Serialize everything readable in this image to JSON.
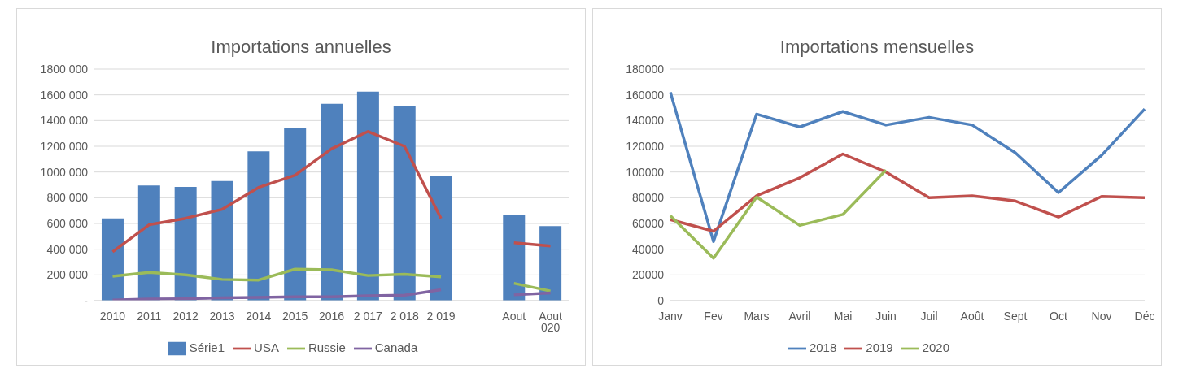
{
  "chart_data": [
    {
      "type": "bar",
      "title": "Importations annuelles",
      "categories": [
        "2010",
        "2011",
        "2012",
        "2013",
        "2014",
        "2015",
        "2016",
        "2 017",
        "2 018",
        "2 019",
        null,
        "Aout",
        "Aout 020"
      ],
      "series": [
        {
          "name": "Série1",
          "color": "#4f81bd",
          "values": [
            640000,
            895000,
            885000,
            930000,
            1160000,
            1345000,
            1530000,
            1625000,
            1510000,
            970000,
            null,
            670000,
            580000
          ]
        },
        {
          "name": "USA",
          "type": "line",
          "color": "#c0504d",
          "values": [
            380000,
            590000,
            640000,
            710000,
            880000,
            975000,
            1180000,
            1315000,
            1200000,
            640000,
            null,
            450000,
            425000
          ]
        },
        {
          "name": "Russie",
          "type": "line",
          "color": "#9bbb59",
          "values": [
            190000,
            220000,
            200000,
            165000,
            160000,
            245000,
            240000,
            195000,
            205000,
            185000,
            null,
            135000,
            75000
          ]
        },
        {
          "name": "Canada",
          "type": "line",
          "color": "#8064a2",
          "values": [
            5000,
            12000,
            15000,
            22000,
            25000,
            30000,
            30000,
            38000,
            42000,
            85000,
            null,
            45000,
            60000
          ]
        }
      ],
      "ylim": [
        0,
        1800000
      ],
      "yticks": [
        {
          "value": 0,
          "label": "-"
        },
        {
          "value": 200000,
          "label": "200 000"
        },
        {
          "value": 400000,
          "label": "400 000"
        },
        {
          "value": 600000,
          "label": "600 000"
        },
        {
          "value": 800000,
          "label": "800 000"
        },
        {
          "value": 1000000,
          "label": "1000 000"
        },
        {
          "value": 1200000,
          "label": "1200 000"
        },
        {
          "value": 1400000,
          "label": "1400 000"
        },
        {
          "value": 1600000,
          "label": "1600 000"
        },
        {
          "value": 1800000,
          "label": "1800 000"
        }
      ],
      "grid": "y",
      "legend": "bottom",
      "marker": "none"
    },
    {
      "type": "line",
      "title": "Importations mensuelles",
      "categories": [
        "Janv",
        "Fev",
        "Mars",
        "Avril",
        "Mai",
        "Juin",
        "Juil",
        "Août",
        "Sept",
        "Oct",
        "Nov",
        "Déc"
      ],
      "series": [
        {
          "name": "2018",
          "color": "#4f81bd",
          "values": [
            162000,
            46000,
            145000,
            135000,
            147000,
            136500,
            142500,
            136500,
            115000,
            84000,
            113000,
            149000
          ]
        },
        {
          "name": "2019",
          "color": "#c0504d",
          "values": [
            63000,
            54000,
            81500,
            95500,
            114000,
            100000,
            80000,
            81500,
            77500,
            65000,
            81000,
            80000
          ]
        },
        {
          "name": "2020",
          "color": "#9bbb59",
          "values": [
            66000,
            33000,
            80500,
            58500,
            67000,
            101500,
            null,
            null,
            null,
            null,
            null,
            null
          ]
        }
      ],
      "ylim": [
        0,
        180000
      ],
      "yticks": [
        0,
        20000,
        40000,
        60000,
        80000,
        100000,
        120000,
        140000,
        160000,
        180000
      ],
      "grid": "y",
      "legend": "bottom",
      "marker": "none"
    }
  ]
}
